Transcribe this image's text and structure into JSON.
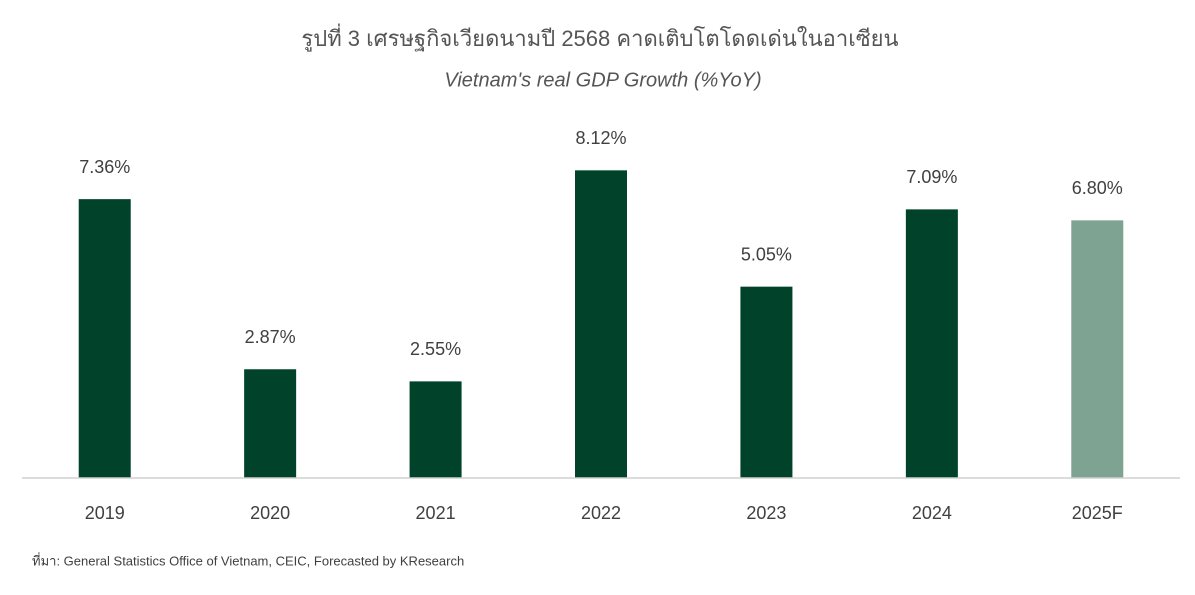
{
  "chart_data": {
    "type": "bar",
    "title": "รูปที่ 3 เศรษฐกิจเวียดนามปี 2568 คาดเติบโตโดดเด่นในอาเซียน",
    "subtitle": "Vietnam's real GDP Growth (%YoY)",
    "categories": [
      "2019",
      "2020",
      "2021",
      "2022",
      "2023",
      "2024",
      "2025F"
    ],
    "values": [
      7.36,
      2.87,
      2.55,
      8.12,
      5.05,
      7.09,
      6.8
    ],
    "value_labels": [
      "7.36%",
      "2.87%",
      "2.55%",
      "8.12%",
      "5.05%",
      "7.09%",
      "6.80%"
    ],
    "colors": [
      "#00432a",
      "#00432a",
      "#00432a",
      "#00432a",
      "#00432a",
      "#00432a",
      "#7fa393"
    ],
    "ylim": [
      0,
      9
    ],
    "source": "ที่มา: General Statistics Office of Vietnam, CEIC, Forecasted by KResearch"
  }
}
